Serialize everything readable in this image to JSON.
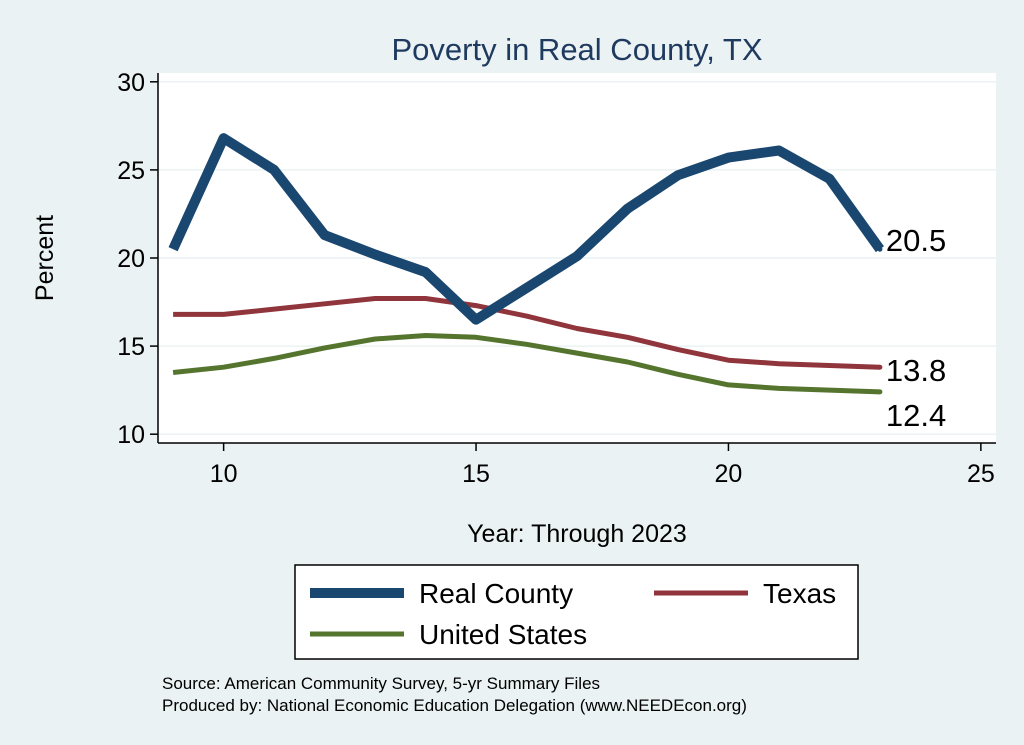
{
  "chart_data": {
    "type": "line",
    "title": "Poverty in Real County, TX",
    "xlabel": "Year: Through 2023",
    "ylabel": "Percent",
    "xlim": [
      8.7,
      25.3
    ],
    "ylim": [
      9.5,
      30.5
    ],
    "xticks": [
      10,
      15,
      20,
      25
    ],
    "yticks": [
      10,
      15,
      20,
      25,
      30
    ],
    "grid": true,
    "legend": {
      "position": "bottom"
    },
    "x": [
      9,
      10,
      11,
      12,
      13,
      14,
      15,
      16,
      17,
      18,
      19,
      20,
      21,
      22,
      23
    ],
    "series": [
      {
        "name": "Real County",
        "color": "#1a476f",
        "values": [
          20.5,
          26.8,
          25.0,
          21.3,
          20.2,
          19.2,
          16.5,
          18.3,
          20.1,
          22.8,
          24.7,
          25.7,
          26.1,
          24.5,
          20.5
        ],
        "end_label": "20.5"
      },
      {
        "name": "Texas",
        "color": "#90353b",
        "values": [
          16.8,
          16.8,
          17.1,
          17.4,
          17.7,
          17.7,
          17.3,
          16.7,
          16.0,
          15.5,
          14.8,
          14.2,
          14.0,
          13.9,
          13.8
        ],
        "end_label": "13.8"
      },
      {
        "name": "United States",
        "color": "#55752f",
        "values": [
          13.5,
          13.8,
          14.3,
          14.9,
          15.4,
          15.6,
          15.5,
          15.1,
          14.6,
          14.1,
          13.4,
          12.8,
          12.6,
          12.5,
          12.4
        ],
        "end_label": "12.4"
      }
    ],
    "notes": [
      "Source: American Community Survey, 5-yr Summary Files",
      "Produced by: National Economic Education Delegation (www.NEEDEcon.org)"
    ]
  }
}
